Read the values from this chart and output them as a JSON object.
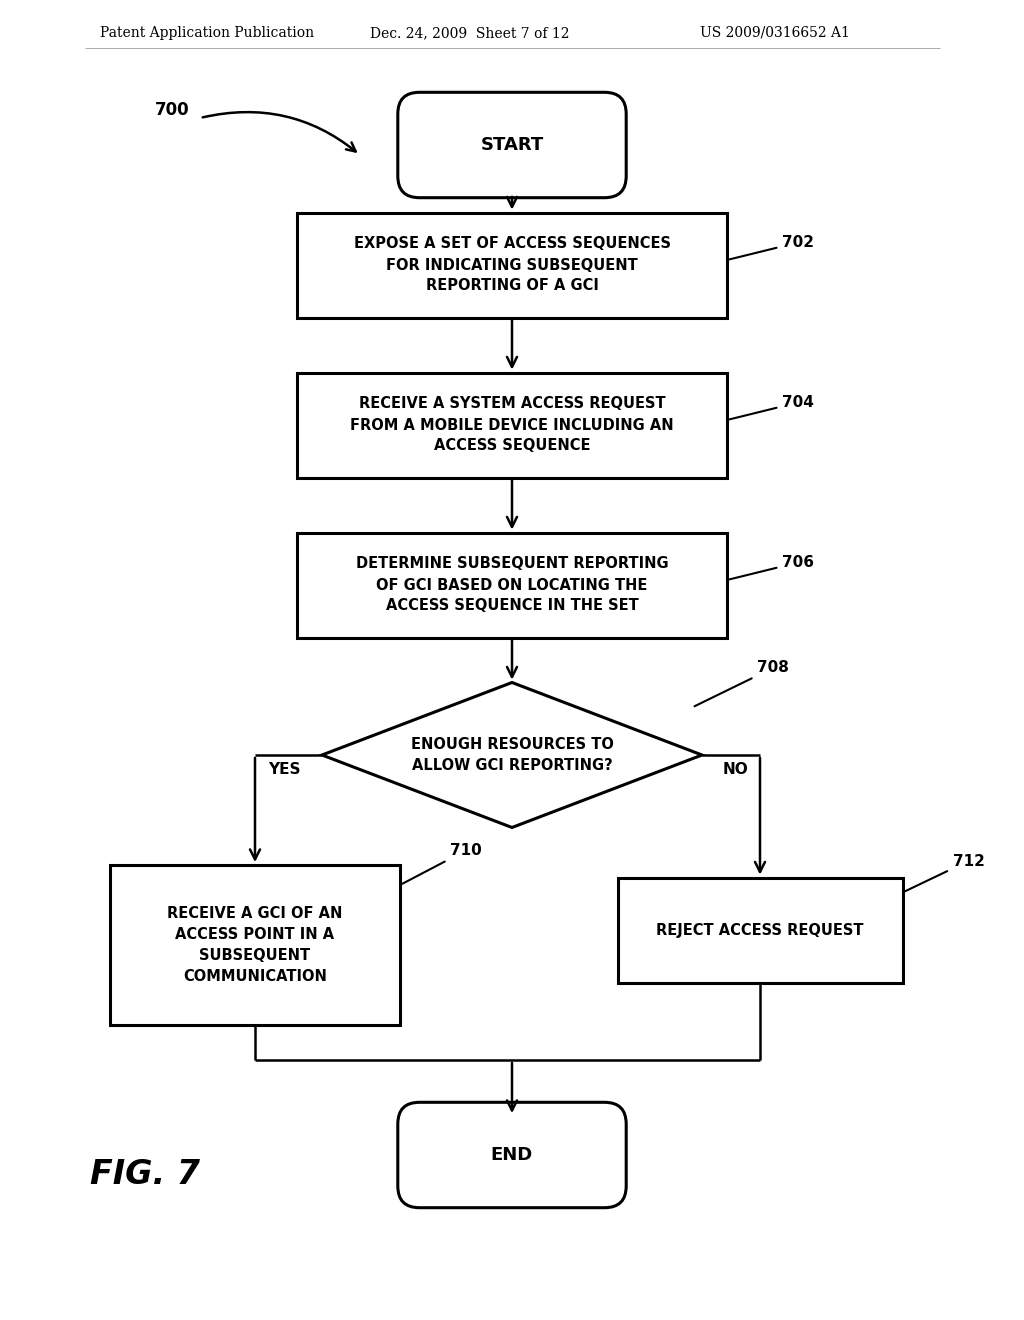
{
  "header_left": "Patent Application Publication",
  "header_mid": "Dec. 24, 2009  Sheet 7 of 12",
  "header_right": "US 2009/0316652 A1",
  "fig_label": "FIG. 7",
  "bg_color": "#ffffff",
  "line_color": "#000000",
  "text_color": "#000000",
  "start_label": "START",
  "end_label": "END",
  "box702_text": "EXPOSE A SET OF ACCESS SEQUENCES\nFOR INDICATING SUBSEQUENT\nREPORTING OF A GCI",
  "box704_text": "RECEIVE A SYSTEM ACCESS REQUEST\nFROM A MOBILE DEVICE INCLUDING AN\nACCESS SEQUENCE",
  "box706_text": "DETERMINE SUBSEQUENT REPORTING\nOF GCI BASED ON LOCATING THE\nACCESS SEQUENCE IN THE SET",
  "diamond708_text": "ENOUGH RESOURCES TO\nALLOW GCI REPORTING?",
  "box710_text": "RECEIVE A GCI OF AN\nACCESS POINT IN A\nSUBSEQUENT\nCOMMUNICATION",
  "box712_text": "REJECT ACCESS REQUEST",
  "tag702": "702",
  "tag704": "704",
  "tag706": "706",
  "tag708": "708",
  "tag710": "710",
  "tag712": "712",
  "label700": "700",
  "yes_label": "YES",
  "no_label": "NO"
}
